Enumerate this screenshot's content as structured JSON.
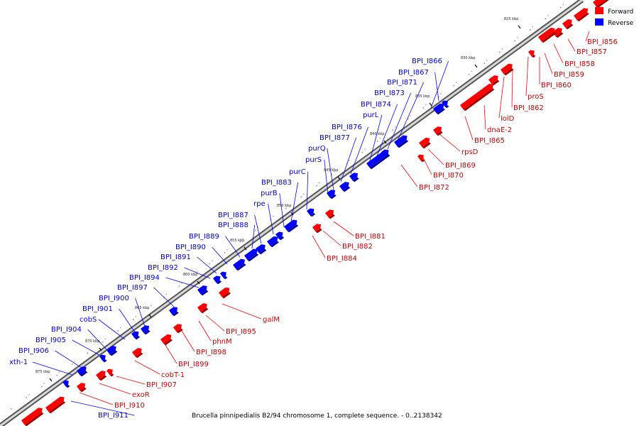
{
  "title": "Brucella pinnipedialis B2/94 chromosome 1, complete sequence. - 0..2138342",
  "legend": [
    {
      "label": "Forward",
      "color": "#ff0000"
    },
    {
      "label": "Reverse",
      "color": "#0000ff"
    }
  ],
  "colors": {
    "forward": "#ff0000",
    "reverse": "#0000ff",
    "backbone": "#888888"
  },
  "ticks": [
    "825 kbp",
    "830 kbp",
    "835 kbp",
    "840 kbp",
    "845 kbp",
    "850 kbp",
    "855 kbp",
    "860 kbp",
    "865 kbp",
    "870 kbp",
    "875 kbp"
  ],
  "forward_labels": [
    "BPI_I856",
    "BPI_I857",
    "BPI_I858",
    "BPI_I859",
    "BPI_I860",
    "proS",
    "BPI_I862",
    "lolD",
    "dnaE-2",
    "BPI_I865",
    "rpsD",
    "BPI_I869",
    "BPI_I870",
    "BPI_I872",
    "BPI_I881",
    "BPI_I882",
    "BPI_I884",
    "galM",
    "BPI_I895",
    "phnM",
    "BPI_I898",
    "BPI_I899",
    "cobT-1",
    "BPI_I907",
    "exoR",
    "BPI_I910"
  ],
  "reverse_labels": [
    "BPI_I866",
    "BPI_I867",
    "BPI_I871",
    "BPI_I873",
    "BPI_I874",
    "purL",
    "BPI_I876",
    "BPI_I877",
    "purQ",
    "purS",
    "purC",
    "BPI_I883",
    "purB",
    "rpe",
    "BPI_I887",
    "BPI_I888",
    "BPI_I889",
    "BPI_I890",
    "BPI_I891",
    "BPI_I892",
    "BPI_I894",
    "BPI_I897",
    "BPI_I900",
    "BPI_I901",
    "cobS",
    "BPI_I904",
    "BPI_I905",
    "BPI_I906",
    "xth-1",
    "BPI_I911"
  ]
}
